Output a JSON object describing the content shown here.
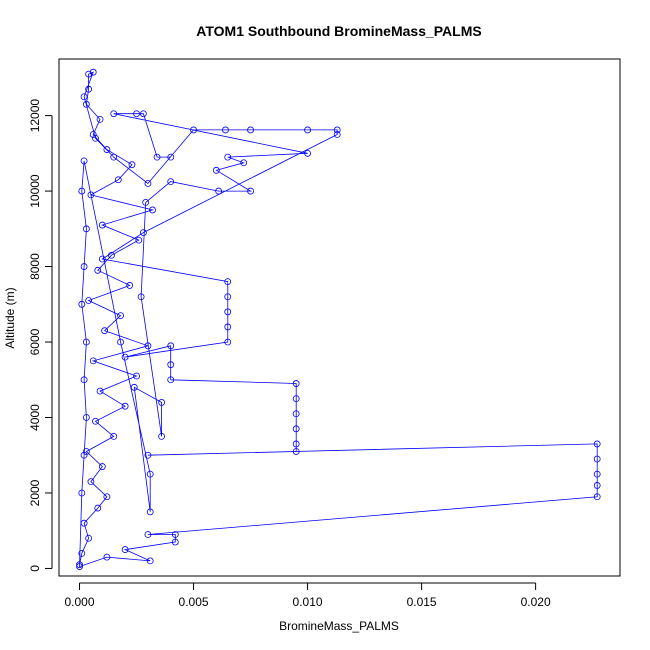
{
  "chart_data": {
    "type": "scatter",
    "title": "ATOM1 Southbound BromineMass_PALMS",
    "xlabel": "BromineMass_PALMS",
    "ylabel": "Altitude (m)",
    "xlim": [
      -0.0009,
      0.0237
    ],
    "ylim": [
      -200,
      13500
    ],
    "x_ticks": [
      0.0,
      0.005,
      0.01,
      0.015,
      0.02
    ],
    "x_tick_labels": [
      "0.000",
      "0.005",
      "0.010",
      "0.015",
      "0.020"
    ],
    "y_ticks": [
      0,
      2000,
      4000,
      6000,
      8000,
      10000,
      12000
    ],
    "y_tick_labels": [
      "0",
      "2000",
      "4000",
      "6000",
      "8000",
      "10000",
      "12000"
    ],
    "grid": false,
    "marker": "open circle",
    "connected": true,
    "series_color": "#0000ff",
    "series": [
      {
        "points": [
          [
            0.0,
            100
          ],
          [
            0.0001,
            400
          ],
          [
            0.0004,
            800
          ],
          [
            0.0002,
            1200
          ],
          [
            0.0008,
            1600
          ],
          [
            0.0012,
            1900
          ],
          [
            0.0005,
            2300
          ],
          [
            0.001,
            2700
          ],
          [
            0.0003,
            3100
          ],
          [
            0.0015,
            3500
          ],
          [
            0.0007,
            3900
          ],
          [
            0.002,
            4300
          ],
          [
            0.0009,
            4700
          ],
          [
            0.0025,
            5100
          ],
          [
            0.0006,
            5500
          ],
          [
            0.003,
            5900
          ],
          [
            0.0011,
            6300
          ],
          [
            0.0018,
            6700
          ],
          [
            0.0004,
            7100
          ],
          [
            0.0022,
            7500
          ],
          [
            0.0008,
            7900
          ],
          [
            0.0014,
            8300
          ],
          [
            0.0026,
            8700
          ],
          [
            0.001,
            9100
          ],
          [
            0.0032,
            9500
          ],
          [
            0.0005,
            9900
          ],
          [
            0.0017,
            10300
          ],
          [
            0.0023,
            10700
          ],
          [
            0.0012,
            11100
          ],
          [
            0.0006,
            11500
          ],
          [
            0.0009,
            11900
          ],
          [
            0.0003,
            12300
          ],
          [
            0.0004,
            12700
          ],
          [
            0.0004,
            13100
          ],
          [
            0.0006,
            13150
          ],
          [
            0.0002,
            12500
          ],
          [
            0.0007,
            11400
          ],
          [
            0.0015,
            10900
          ],
          [
            0.003,
            10200
          ],
          [
            0.005,
            11620
          ],
          [
            0.0064,
            11620
          ],
          [
            0.0075,
            11620
          ],
          [
            0.01,
            11620
          ],
          [
            0.0113,
            11620
          ],
          [
            0.0113,
            11500
          ],
          [
            0.0028,
            8900
          ],
          [
            0.001,
            8200
          ],
          [
            0.0065,
            7600
          ],
          [
            0.0065,
            7200
          ],
          [
            0.0065,
            6800
          ],
          [
            0.0065,
            6400
          ],
          [
            0.0065,
            6000
          ],
          [
            0.002,
            5600
          ],
          [
            0.004,
            5900
          ],
          [
            0.004,
            5400
          ],
          [
            0.004,
            5000
          ],
          [
            0.0095,
            4900
          ],
          [
            0.0095,
            4500
          ],
          [
            0.0095,
            4100
          ],
          [
            0.0095,
            3700
          ],
          [
            0.0095,
            3300
          ],
          [
            0.0095,
            3100
          ],
          [
            0.003,
            3000
          ],
          [
            0.0227,
            3300
          ],
          [
            0.0227,
            2900
          ],
          [
            0.0227,
            2500
          ],
          [
            0.0227,
            2200
          ],
          [
            0.0227,
            1900
          ],
          [
            0.003,
            900
          ],
          [
            0.0042,
            900
          ],
          [
            0.0042,
            700
          ],
          [
            0.002,
            500
          ],
          [
            0.0031,
            200
          ],
          [
            0.0012,
            300
          ],
          [
            0.0,
            50
          ],
          [
            0.0001,
            2000
          ],
          [
            0.0002,
            3000
          ],
          [
            0.0003,
            4000
          ],
          [
            0.0002,
            5000
          ],
          [
            0.0003,
            6000
          ],
          [
            0.0001,
            7000
          ],
          [
            0.0002,
            8000
          ],
          [
            0.0003,
            9000
          ],
          [
            0.0001,
            10000
          ],
          [
            0.0002,
            10800
          ],
          [
            0.0018,
            6000
          ],
          [
            0.0031,
            2500
          ],
          [
            0.0031,
            1500
          ],
          [
            0.0024,
            4800
          ],
          [
            0.0036,
            4400
          ],
          [
            0.0036,
            3500
          ],
          [
            0.0027,
            7200
          ],
          [
            0.0029,
            9700
          ],
          [
            0.004,
            10250
          ],
          [
            0.0061,
            10000
          ],
          [
            0.0075,
            10000
          ],
          [
            0.006,
            10550
          ],
          [
            0.0072,
            10750
          ],
          [
            0.0065,
            10900
          ],
          [
            0.01,
            11000
          ],
          [
            0.0015,
            12050
          ],
          [
            0.0025,
            12050
          ],
          [
            0.0028,
            12050
          ],
          [
            0.0034,
            10900
          ],
          [
            0.004,
            10900
          ]
        ]
      }
    ]
  }
}
